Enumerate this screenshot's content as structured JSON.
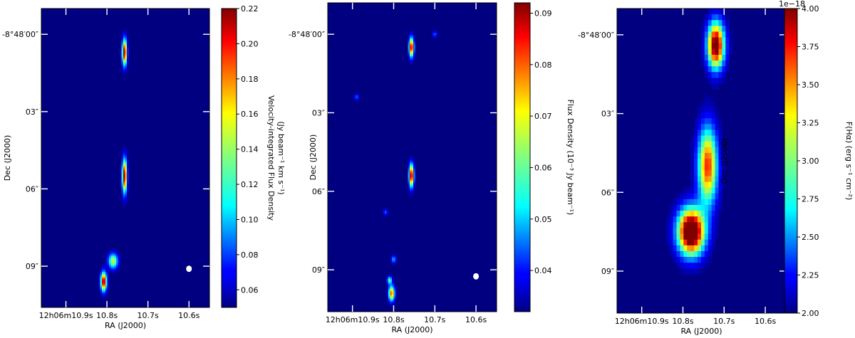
{
  "chart_data": [
    {
      "type": "heatmap",
      "title": "",
      "xlabel": "RA (J2000)",
      "ylabel": "Dec (J2000)",
      "x_ticks": [
        {
          "ra": 10.9,
          "label": "12h06m10.9s"
        },
        {
          "ra": 10.8,
          "label": "10.8s"
        },
        {
          "ra": 10.7,
          "label": "10.7s"
        },
        {
          "ra": 10.6,
          "label": "10.6s"
        }
      ],
      "y_ticks": [
        {
          "dec": 0,
          "label": "-8°48′00″"
        },
        {
          "dec": 3,
          "label": "03″"
        },
        {
          "dec": 6,
          "label": "06″"
        },
        {
          "dec": 9,
          "label": "09″"
        }
      ],
      "xlim": [
        10.96,
        10.55
      ],
      "ylim": [
        10.6,
        -1.0
      ],
      "colorbar": {
        "label_lines": [
          "Velocity-integrated Flux Density",
          "(Jy beam⁻¹ km s⁻¹)"
        ],
        "range": [
          0.05,
          0.22
        ],
        "ticks": [
          0.06,
          0.08,
          0.1,
          0.12,
          0.14,
          0.16,
          0.18,
          0.2,
          0.22
        ],
        "tick_labels": [
          "0.06",
          "0.08",
          "0.10",
          "0.12",
          "0.14",
          "0.16",
          "0.18",
          "0.20",
          "0.22"
        ],
        "offset_text": "",
        "colormap": "jet"
      },
      "emission": [
        {
          "ra": 10.757,
          "dec": 0.7,
          "peak": 0.22,
          "sigma_ra": 0.004,
          "sigma_dec": 0.35
        },
        {
          "ra": 10.757,
          "dec": 5.5,
          "peak": 0.22,
          "sigma_ra": 0.004,
          "sigma_dec": 0.45
        },
        {
          "ra": 10.808,
          "dec": 9.6,
          "peak": 0.22,
          "sigma_ra": 0.005,
          "sigma_dec": 0.25
        },
        {
          "ra": 10.785,
          "dec": 8.8,
          "peak": 0.15,
          "sigma_ra": 0.008,
          "sigma_dec": 0.2
        }
      ],
      "beam": {
        "ra": 10.6,
        "dec": 9.1
      }
    },
    {
      "type": "heatmap",
      "title": "",
      "xlabel": "RA (J2000)",
      "ylabel": "Dec (J2000)",
      "x_ticks": [
        {
          "ra": 10.9,
          "label": "12h06m10.9s"
        },
        {
          "ra": 10.8,
          "label": "10.8s"
        },
        {
          "ra": 10.7,
          "label": "10.7s"
        },
        {
          "ra": 10.6,
          "label": "10.6s"
        }
      ],
      "y_ticks": [
        {
          "dec": 0,
          "label": "-8°48′00″"
        },
        {
          "dec": 3,
          "label": "03″"
        },
        {
          "dec": 6,
          "label": "06″"
        },
        {
          "dec": 9,
          "label": "09″"
        }
      ],
      "xlim": [
        10.96,
        10.55
      ],
      "ylim": [
        10.6,
        -1.2
      ],
      "colorbar": {
        "label_lines": [
          "Flux Density (10⁻³ Jy beam⁻¹)"
        ],
        "range": [
          0.032,
          0.092
        ],
        "ticks": [
          0.04,
          0.05,
          0.06,
          0.07,
          0.08,
          0.09
        ],
        "tick_labels": [
          "0.04",
          "0.05",
          "0.06",
          "0.07",
          "0.08",
          "0.09"
        ],
        "offset_text": "",
        "colormap": "jet"
      },
      "emission": [
        {
          "ra": 10.757,
          "dec": 0.5,
          "peak": 0.09,
          "sigma_ra": 0.004,
          "sigma_dec": 0.25
        },
        {
          "ra": 10.757,
          "dec": 5.4,
          "peak": 0.092,
          "sigma_ra": 0.004,
          "sigma_dec": 0.3
        },
        {
          "ra": 10.805,
          "dec": 9.9,
          "peak": 0.08,
          "sigma_ra": 0.005,
          "sigma_dec": 0.2
        },
        {
          "ra": 10.81,
          "dec": 9.4,
          "peak": 0.06,
          "sigma_ra": 0.004,
          "sigma_dec": 0.1
        },
        {
          "ra": 10.8,
          "dec": 8.6,
          "peak": 0.05,
          "sigma_ra": 0.004,
          "sigma_dec": 0.1
        },
        {
          "ra": 10.82,
          "dec": 6.8,
          "peak": 0.045,
          "sigma_ra": 0.004,
          "sigma_dec": 0.08
        },
        {
          "ra": 10.89,
          "dec": 2.4,
          "peak": 0.045,
          "sigma_ra": 0.004,
          "sigma_dec": 0.08
        },
        {
          "ra": 10.7,
          "dec": 0.0,
          "peak": 0.045,
          "sigma_ra": 0.004,
          "sigma_dec": 0.08
        }
      ],
      "beam": {
        "ra": 10.6,
        "dec": 9.25
      }
    },
    {
      "type": "heatmap",
      "title": "",
      "xlabel": "RA (J2000)",
      "ylabel": "Dec (J2000)",
      "x_ticks": [
        {
          "ra": 10.9,
          "label": "12h06m10.9s"
        },
        {
          "ra": 10.8,
          "label": "10.8s"
        },
        {
          "ra": 10.7,
          "label": "10.7s"
        },
        {
          "ra": 10.6,
          "label": "10.6s"
        }
      ],
      "y_ticks": [
        {
          "dec": 0,
          "label": "-8°48′00″"
        },
        {
          "dec": 3,
          "label": "03″"
        },
        {
          "dec": 6,
          "label": "06″"
        },
        {
          "dec": 9,
          "label": "09″"
        }
      ],
      "xlim": [
        10.96,
        10.55
      ],
      "ylim": [
        10.6,
        -1.0
      ],
      "colorbar": {
        "label_lines": [
          "F(Hα) (erg s⁻¹ cm⁻²)"
        ],
        "range": [
          2.0,
          4.0
        ],
        "ticks": [
          2.0,
          2.25,
          2.5,
          2.75,
          3.0,
          3.25,
          3.5,
          3.75,
          4.0
        ],
        "tick_labels": [
          "2.00",
          "2.25",
          "2.50",
          "2.75",
          "3.00",
          "3.25",
          "3.50",
          "3.75",
          "4.00"
        ],
        "offset_text": "1e−18",
        "colormap": "jet"
      },
      "emission": [
        {
          "ra": 10.72,
          "dec": 0.4,
          "peak": 4.2,
          "sigma_ra": 0.014,
          "sigma_dec": 0.6
        },
        {
          "ra": 10.74,
          "dec": 5.0,
          "peak": 3.7,
          "sigma_ra": 0.016,
          "sigma_dec": 1.0
        },
        {
          "ra": 10.78,
          "dec": 7.5,
          "peak": 4.6,
          "sigma_ra": 0.022,
          "sigma_dec": 0.6
        }
      ],
      "pixel_size": {
        "ra": 0.0085,
        "dec": 0.22
      }
    }
  ]
}
